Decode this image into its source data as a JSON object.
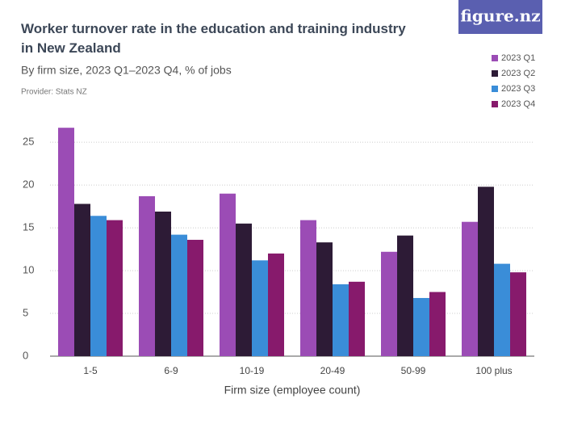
{
  "chart_data": {
    "type": "bar",
    "title": "Worker turnover rate in the education and training industry in New Zealand",
    "subtitle": "By firm size, 2023 Q1–2023 Q4, % of jobs",
    "provider": "Provider: Stats NZ",
    "logo": "figure.nz",
    "x_label": "Firm size (employee count)",
    "categories": [
      "1-5",
      "6-9",
      "10-19",
      "20-49",
      "50-99",
      "100 plus"
    ],
    "series": [
      {
        "name": "2023 Q1",
        "color": "#9b4cb5",
        "values": [
          26.7,
          18.7,
          19.0,
          15.9,
          12.2,
          15.7
        ]
      },
      {
        "name": "2023 Q2",
        "color": "#2d1b36",
        "values": [
          17.8,
          16.9,
          15.5,
          13.3,
          14.1,
          19.8
        ]
      },
      {
        "name": "2023 Q3",
        "color": "#3a8dd8",
        "values": [
          16.4,
          14.2,
          11.2,
          8.4,
          6.8,
          10.8
        ]
      },
      {
        "name": "2023 Q4",
        "color": "#871a6c",
        "values": [
          15.9,
          13.6,
          12.0,
          8.7,
          7.5,
          9.8
        ]
      }
    ],
    "ylim": [
      0,
      27
    ],
    "yticks": [
      0,
      5,
      10,
      15,
      20,
      25
    ],
    "grid": true,
    "legend": "top-right"
  }
}
